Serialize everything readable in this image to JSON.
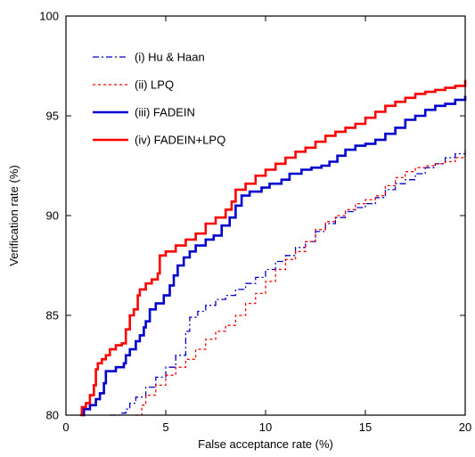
{
  "chart_data": {
    "type": "line",
    "xlabel": "False acceptance rate (%)",
    "ylabel": "Verification rate (%)",
    "xlim": [
      0,
      20
    ],
    "ylim": [
      80,
      100
    ],
    "xticks": [
      0,
      5,
      10,
      15,
      20
    ],
    "yticks": [
      80,
      85,
      90,
      95,
      100
    ],
    "grid": false,
    "legend_position": "top-left",
    "series": [
      {
        "name": "(i) Hu & Haan",
        "color": "#0000cc",
        "dash": "dashdot",
        "points": [
          [
            2.2,
            80.0
          ],
          [
            2.8,
            80.1
          ],
          [
            3.0,
            80.3
          ],
          [
            3.2,
            80.6
          ],
          [
            3.5,
            80.9
          ],
          [
            4.0,
            81.4
          ],
          [
            4.5,
            81.9
          ],
          [
            5.0,
            82.4
          ],
          [
            5.5,
            83.0
          ],
          [
            6.0,
            84.2
          ],
          [
            6.2,
            84.9
          ],
          [
            6.6,
            85.2
          ],
          [
            7.0,
            85.5
          ],
          [
            7.5,
            85.8
          ],
          [
            8.0,
            86.0
          ],
          [
            8.5,
            86.3
          ],
          [
            9.0,
            86.6
          ],
          [
            9.5,
            86.9
          ],
          [
            10.0,
            87.3
          ],
          [
            10.5,
            87.7
          ],
          [
            11.0,
            88.0
          ],
          [
            11.5,
            88.4
          ],
          [
            12.0,
            88.7
          ],
          [
            12.5,
            89.2
          ],
          [
            13.0,
            89.6
          ],
          [
            13.5,
            89.9
          ],
          [
            14.0,
            90.2
          ],
          [
            14.5,
            90.4
          ],
          [
            15.0,
            90.6
          ],
          [
            15.5,
            90.9
          ],
          [
            16.0,
            91.3
          ],
          [
            16.5,
            91.6
          ],
          [
            17.0,
            91.8
          ],
          [
            17.5,
            92.1
          ],
          [
            18.0,
            92.4
          ],
          [
            18.5,
            92.6
          ],
          [
            19.0,
            92.9
          ],
          [
            19.5,
            93.1
          ],
          [
            20.0,
            93.3
          ]
        ]
      },
      {
        "name": "(ii) LPQ",
        "color": "#ff0000",
        "dash": "dotted",
        "points": [
          [
            3.5,
            80.0
          ],
          [
            3.8,
            80.5
          ],
          [
            4.0,
            81.0
          ],
          [
            4.5,
            81.5
          ],
          [
            5.0,
            82.0
          ],
          [
            5.5,
            82.4
          ],
          [
            6.0,
            82.8
          ],
          [
            6.5,
            83.3
          ],
          [
            7.0,
            83.8
          ],
          [
            7.5,
            84.2
          ],
          [
            8.0,
            84.5
          ],
          [
            8.5,
            85.0
          ],
          [
            9.0,
            85.6
          ],
          [
            9.5,
            86.1
          ],
          [
            10.0,
            86.7
          ],
          [
            10.5,
            87.3
          ],
          [
            11.0,
            87.8
          ],
          [
            11.5,
            88.2
          ],
          [
            12.0,
            88.7
          ],
          [
            12.5,
            89.3
          ],
          [
            13.0,
            89.7
          ],
          [
            13.5,
            90.0
          ],
          [
            14.0,
            90.3
          ],
          [
            14.5,
            90.6
          ],
          [
            15.0,
            90.8
          ],
          [
            15.5,
            91.0
          ],
          [
            16.0,
            91.5
          ],
          [
            16.5,
            91.9
          ],
          [
            17.0,
            92.2
          ],
          [
            17.5,
            92.4
          ],
          [
            18.0,
            92.5
          ],
          [
            18.5,
            92.6
          ],
          [
            19.0,
            92.7
          ],
          [
            19.5,
            92.9
          ],
          [
            20.0,
            93.2
          ]
        ]
      },
      {
        "name": "(iii) FADEIN",
        "color": "#0000cc",
        "dash": "solid",
        "points": [
          [
            0.8,
            80.0
          ],
          [
            0.9,
            80.3
          ],
          [
            1.2,
            80.5
          ],
          [
            1.5,
            80.8
          ],
          [
            1.7,
            81.1
          ],
          [
            1.9,
            81.6
          ],
          [
            2.0,
            82.2
          ],
          [
            2.5,
            82.4
          ],
          [
            2.9,
            82.6
          ],
          [
            3.0,
            83.0
          ],
          [
            3.2,
            83.3
          ],
          [
            3.5,
            83.7
          ],
          [
            3.7,
            84.0
          ],
          [
            3.9,
            84.4
          ],
          [
            4.0,
            84.7
          ],
          [
            4.2,
            85.3
          ],
          [
            4.5,
            85.6
          ],
          [
            4.9,
            86.0
          ],
          [
            5.2,
            86.5
          ],
          [
            5.4,
            87.0
          ],
          [
            5.6,
            87.5
          ],
          [
            5.9,
            87.9
          ],
          [
            6.2,
            88.2
          ],
          [
            6.5,
            88.5
          ],
          [
            7.0,
            88.8
          ],
          [
            7.4,
            89.0
          ],
          [
            7.8,
            89.5
          ],
          [
            8.2,
            89.9
          ],
          [
            8.5,
            90.5
          ],
          [
            8.8,
            91.0
          ],
          [
            9.2,
            91.2
          ],
          [
            9.8,
            91.4
          ],
          [
            10.2,
            91.6
          ],
          [
            10.8,
            91.8
          ],
          [
            11.2,
            92.1
          ],
          [
            11.8,
            92.3
          ],
          [
            12.3,
            92.4
          ],
          [
            12.8,
            92.5
          ],
          [
            13.2,
            92.7
          ],
          [
            13.6,
            93.0
          ],
          [
            14.0,
            93.3
          ],
          [
            14.5,
            93.5
          ],
          [
            15.0,
            93.6
          ],
          [
            15.5,
            93.8
          ],
          [
            16.0,
            94.1
          ],
          [
            16.5,
            94.4
          ],
          [
            17.0,
            94.8
          ],
          [
            17.5,
            95.0
          ],
          [
            18.0,
            95.3
          ],
          [
            18.5,
            95.5
          ],
          [
            19.0,
            95.6
          ],
          [
            19.5,
            95.8
          ],
          [
            20.0,
            96.0
          ]
        ]
      },
      {
        "name": "(iv) FADEIN+LPQ",
        "color": "#ff0000",
        "dash": "solid",
        "points": [
          [
            0.7,
            80.0
          ],
          [
            0.8,
            80.4
          ],
          [
            1.0,
            80.6
          ],
          [
            1.2,
            81.0
          ],
          [
            1.4,
            81.5
          ],
          [
            1.5,
            82.3
          ],
          [
            1.6,
            82.6
          ],
          [
            1.8,
            82.8
          ],
          [
            2.0,
            83.0
          ],
          [
            2.2,
            83.3
          ],
          [
            2.5,
            83.5
          ],
          [
            2.8,
            83.6
          ],
          [
            3.0,
            84.3
          ],
          [
            3.2,
            85.0
          ],
          [
            3.4,
            85.3
          ],
          [
            3.6,
            86.0
          ],
          [
            3.7,
            86.3
          ],
          [
            4.0,
            86.6
          ],
          [
            4.3,
            86.8
          ],
          [
            4.6,
            87.1
          ],
          [
            4.7,
            88.0
          ],
          [
            5.0,
            88.2
          ],
          [
            5.5,
            88.5
          ],
          [
            6.0,
            88.8
          ],
          [
            6.5,
            89.1
          ],
          [
            7.0,
            89.6
          ],
          [
            7.5,
            89.9
          ],
          [
            8.0,
            90.3
          ],
          [
            8.3,
            90.7
          ],
          [
            8.5,
            91.3
          ],
          [
            9.0,
            91.6
          ],
          [
            9.5,
            92.0
          ],
          [
            10.0,
            92.3
          ],
          [
            10.5,
            92.6
          ],
          [
            11.0,
            92.9
          ],
          [
            11.5,
            93.2
          ],
          [
            12.0,
            93.4
          ],
          [
            12.5,
            93.7
          ],
          [
            13.0,
            94.0
          ],
          [
            13.5,
            94.2
          ],
          [
            14.0,
            94.4
          ],
          [
            14.5,
            94.6
          ],
          [
            15.0,
            94.9
          ],
          [
            15.5,
            95.2
          ],
          [
            16.0,
            95.5
          ],
          [
            16.5,
            95.7
          ],
          [
            17.0,
            95.9
          ],
          [
            17.5,
            96.1
          ],
          [
            18.0,
            96.2
          ],
          [
            18.5,
            96.3
          ],
          [
            19.0,
            96.4
          ],
          [
            19.5,
            96.5
          ],
          [
            20.0,
            96.8
          ]
        ]
      }
    ]
  }
}
